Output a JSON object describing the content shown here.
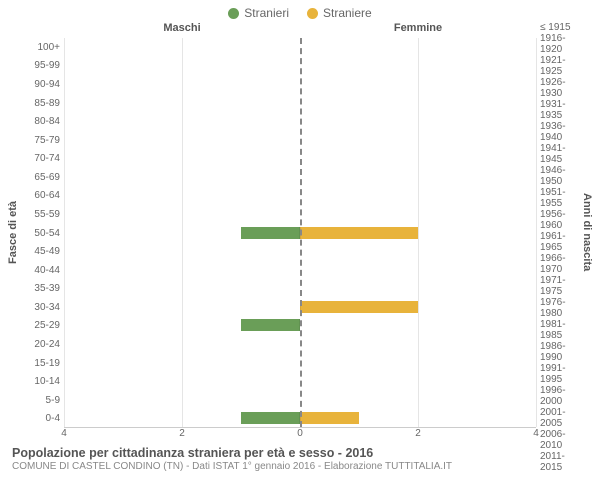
{
  "legend": {
    "male": {
      "label": "Stranieri",
      "color": "#6a9e58"
    },
    "female": {
      "label": "Straniere",
      "color": "#e8b33b"
    }
  },
  "headers": {
    "left": "Maschi",
    "right": "Femmine"
  },
  "axis_left": {
    "label": "Fasce di età"
  },
  "axis_right": {
    "label": "Anni di nascita"
  },
  "x": {
    "max": 4,
    "ticks": [
      4,
      2,
      0,
      2,
      4
    ]
  },
  "grid_color": "#e5e5e5",
  "center_color": "#888888",
  "background": "#ffffff",
  "rows": [
    {
      "age": "0-4",
      "birth": "2011-2015",
      "m": 1,
      "f": 1
    },
    {
      "age": "5-9",
      "birth": "2006-2010",
      "m": 0,
      "f": 0
    },
    {
      "age": "10-14",
      "birth": "2001-2005",
      "m": 0,
      "f": 0
    },
    {
      "age": "15-19",
      "birth": "1996-2000",
      "m": 0,
      "f": 0
    },
    {
      "age": "20-24",
      "birth": "1991-1995",
      "m": 0,
      "f": 0
    },
    {
      "age": "25-29",
      "birth": "1986-1990",
      "m": 1,
      "f": 0
    },
    {
      "age": "30-34",
      "birth": "1981-1985",
      "m": 0,
      "f": 2
    },
    {
      "age": "35-39",
      "birth": "1976-1980",
      "m": 0,
      "f": 0
    },
    {
      "age": "40-44",
      "birth": "1971-1975",
      "m": 0,
      "f": 0
    },
    {
      "age": "45-49",
      "birth": "1966-1970",
      "m": 0,
      "f": 0
    },
    {
      "age": "50-54",
      "birth": "1961-1965",
      "m": 1,
      "f": 2
    },
    {
      "age": "55-59",
      "birth": "1956-1960",
      "m": 0,
      "f": 0
    },
    {
      "age": "60-64",
      "birth": "1951-1955",
      "m": 0,
      "f": 0
    },
    {
      "age": "65-69",
      "birth": "1946-1950",
      "m": 0,
      "f": 0
    },
    {
      "age": "70-74",
      "birth": "1941-1945",
      "m": 0,
      "f": 0
    },
    {
      "age": "75-79",
      "birth": "1936-1940",
      "m": 0,
      "f": 0
    },
    {
      "age": "80-84",
      "birth": "1931-1935",
      "m": 0,
      "f": 0
    },
    {
      "age": "85-89",
      "birth": "1926-1930",
      "m": 0,
      "f": 0
    },
    {
      "age": "90-94",
      "birth": "1921-1925",
      "m": 0,
      "f": 0
    },
    {
      "age": "95-99",
      "birth": "1916-1920",
      "m": 0,
      "f": 0
    },
    {
      "age": "100+",
      "birth": "≤ 1915",
      "m": 0,
      "f": 0
    }
  ],
  "caption": {
    "title": "Popolazione per cittadinanza straniera per età e sesso - 2016",
    "sub": "COMUNE DI CASTEL CONDINO (TN) - Dati ISTAT 1° gennaio 2016 - Elaborazione TUTTITALIA.IT"
  }
}
